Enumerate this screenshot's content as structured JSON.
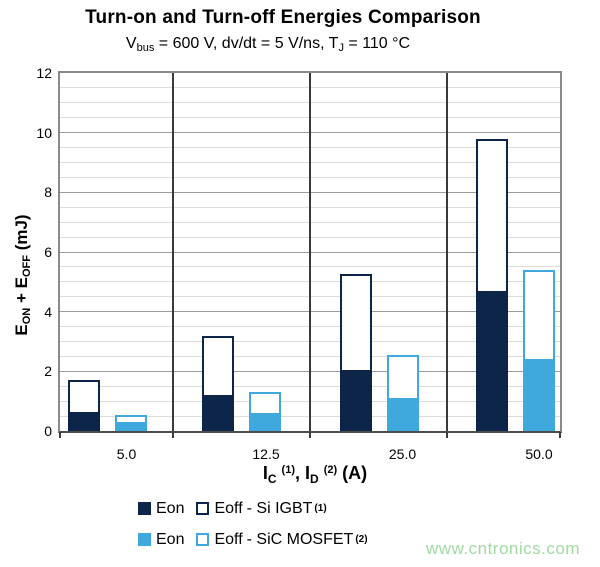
{
  "watermark": "www.cntronics.com",
  "chart_data": {
    "type": "bar",
    "stacked": true,
    "grid": true,
    "legend_position": "bottom",
    "title": "Turn-on and Turn-off Energies Comparison",
    "subtitle_plain": "Vbus = 600 V, dv/dt = 5 V/ns, TJ = 110 °C",
    "subtitle_parts": [
      {
        "t": "V"
      },
      {
        "t": "bus",
        "style": "sub"
      },
      {
        "t": " = 600 V, dv/dt = 5 V/ns, T"
      },
      {
        "t": "J",
        "style": "sub"
      },
      {
        "t": " = 110 °C"
      }
    ],
    "xlabel_plain": "IC (1), ID (2) (A)",
    "xlabel_parts": [
      {
        "t": "I"
      },
      {
        "t": "C",
        "style": "sub"
      },
      {
        "t": " "
      },
      {
        "t": "(1)",
        "style": "sup"
      },
      {
        "t": ", I"
      },
      {
        "t": "D",
        "style": "sub"
      },
      {
        "t": " "
      },
      {
        "t": "(2)",
        "style": "sup"
      },
      {
        "t": " (A)"
      }
    ],
    "ylabel_plain": "EON + EOFF (mJ)",
    "ylabel_parts": [
      {
        "t": "E"
      },
      {
        "t": "ON",
        "style": "sub"
      },
      {
        "t": " + E"
      },
      {
        "t": "OFF",
        "style": "sub"
      },
      {
        "t": " (mJ)"
      }
    ],
    "categories": [
      "5.0",
      "12.5",
      "25.0",
      "50.0"
    ],
    "ylim": [
      0,
      12
    ],
    "y_ticks": [
      0,
      2,
      4,
      6,
      8,
      10,
      12
    ],
    "y_major_step": 2,
    "y_minor_step": 0.5,
    "series": [
      {
        "name": "Si IGBT",
        "footnote": "(1)",
        "color": "#0c2548",
        "legend_eon": "Eon",
        "legend_eoff": "Eoff",
        "legend_name": "- Si IGBT",
        "eon": [
          0.65,
          1.2,
          2.05,
          4.7
        ],
        "eoff": [
          1.05,
          2.0,
          3.2,
          5.1
        ]
      },
      {
        "name": "SiC MOSFET",
        "footnote": "(2)",
        "color": "#3fa8dc",
        "legend_eon": "Eon",
        "legend_eoff": "Eoff",
        "legend_name": "- SiC MOSFET",
        "eon": [
          0.3,
          0.6,
          1.1,
          2.4
        ],
        "eoff": [
          0.25,
          0.7,
          1.45,
          3.0
        ]
      }
    ]
  }
}
